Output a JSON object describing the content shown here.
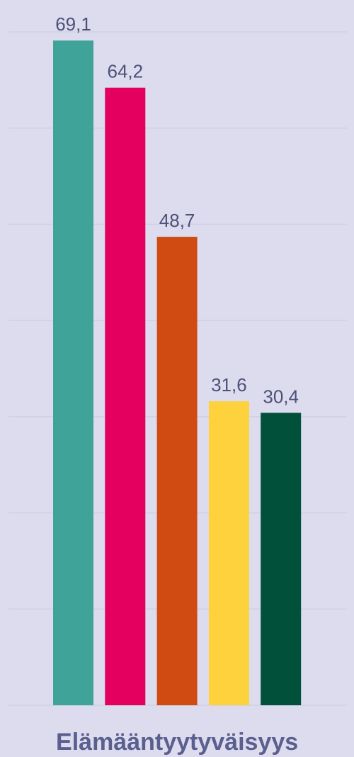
{
  "chart_data": {
    "type": "bar",
    "categories": [
      "Elämääntyytyväisyys"
    ],
    "series": [
      {
        "color": "#3fa39a",
        "values": [
          69.1
        ],
        "value_labels": [
          "69,1"
        ]
      },
      {
        "color": "#e3005f",
        "values": [
          64.2
        ],
        "value_labels": [
          "64,2"
        ]
      },
      {
        "color": "#cf4b12",
        "values": [
          48.7
        ],
        "value_labels": [
          "48,7"
        ]
      },
      {
        "color": "#fed23c",
        "values": [
          31.6
        ],
        "value_labels": [
          "31,6"
        ]
      },
      {
        "color": "#00503a",
        "values": [
          30.4
        ],
        "value_labels": [
          "30,4"
        ]
      }
    ],
    "ylim": [
      0,
      70
    ],
    "yticks": [
      0,
      10,
      20,
      30,
      40,
      50,
      60,
      70
    ],
    "grid": true
  }
}
